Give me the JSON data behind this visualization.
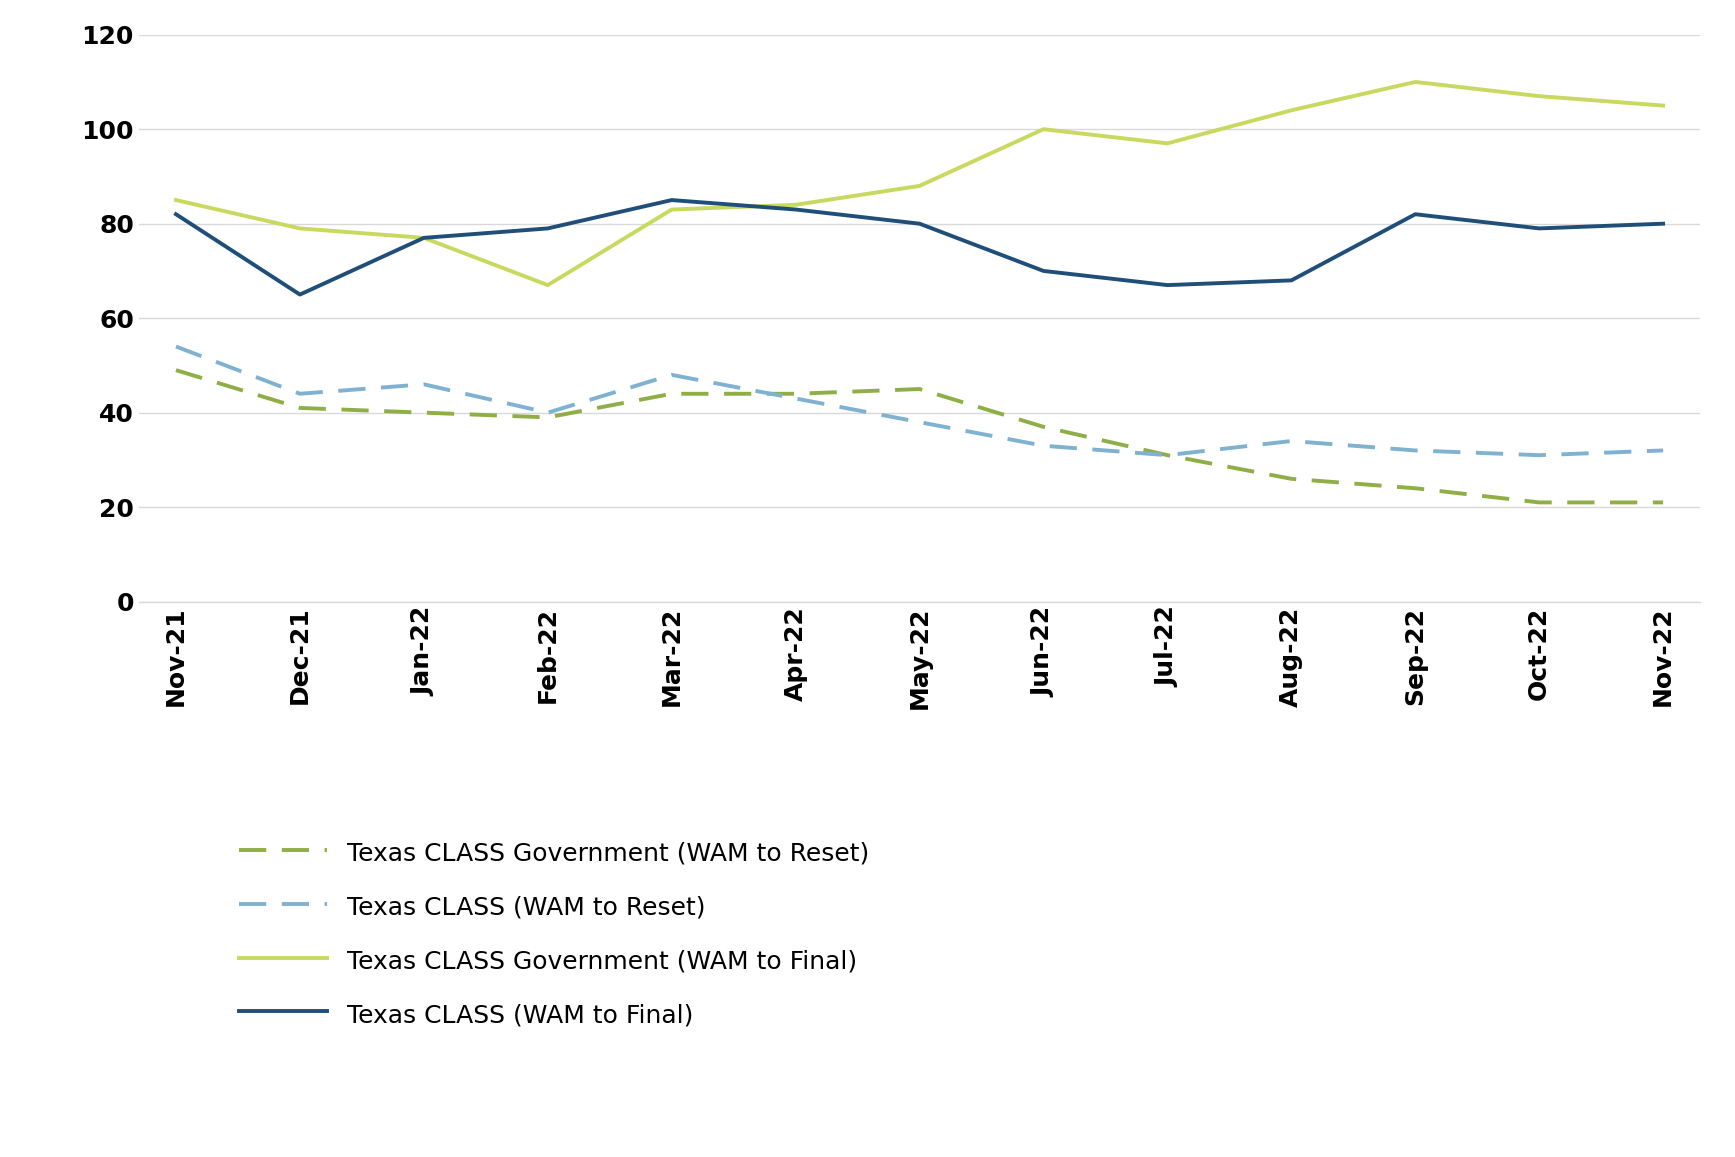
{
  "x_labels": [
    "Nov-21",
    "Dec-21",
    "Jan-22",
    "Feb-22",
    "Mar-22",
    "Apr-22",
    "May-22",
    "Jun-22",
    "Jul-22",
    "Aug-22",
    "Sep-22",
    "Oct-22",
    "Nov-22"
  ],
  "gov_wam_reset": [
    49,
    41,
    40,
    39,
    44,
    44,
    45,
    37,
    31,
    26,
    24,
    21,
    21
  ],
  "class_wam_reset": [
    54,
    44,
    46,
    40,
    48,
    43,
    38,
    33,
    31,
    34,
    32,
    31,
    32
  ],
  "gov_wam_final": [
    85,
    79,
    77,
    67,
    83,
    84,
    88,
    100,
    97,
    104,
    110,
    107,
    105
  ],
  "class_wam_final": [
    82,
    65,
    77,
    79,
    85,
    83,
    80,
    70,
    67,
    68,
    82,
    79,
    80
  ],
  "ylim": [
    0,
    120
  ],
  "yticks": [
    0,
    20,
    40,
    60,
    80,
    100,
    120
  ],
  "gov_wam_reset_color": "#8fae45",
  "class_wam_reset_color": "#7fb2d0",
  "gov_wam_final_color": "#c8d95f",
  "class_wam_final_color": "#1f4e79",
  "background_color": "#ffffff",
  "plot_bg_color": "#ffffff",
  "grid_color": "#d9d9d9",
  "tick_color": "#000000",
  "legend_labels": [
    "Texas CLASS Government (WAM to Reset)",
    "Texas CLASS (WAM to Reset)",
    "Texas CLASS Government (WAM to Final)",
    "Texas CLASS (WAM to Final)"
  ]
}
